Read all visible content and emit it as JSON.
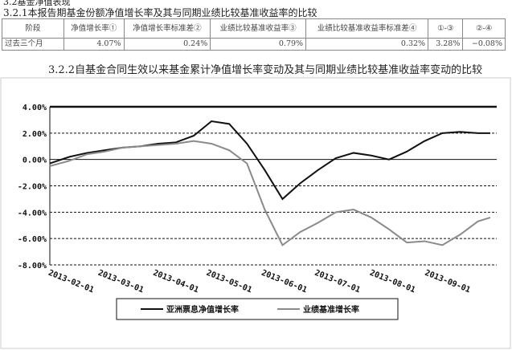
{
  "heading": "3.2基金净值表现",
  "subheading": "3.2.1本报告期基金份额净值增长率及其与同期业绩比较基准收益率的比较",
  "table": {
    "header": [
      "阶段",
      "净值增长率①",
      "净值增长率标准差②",
      "业绩比较基准收益率③",
      "业绩比较基准收益率标准差④",
      "①-③",
      "②-④"
    ],
    "rows": [
      [
        "过去三个月",
        "4.07%",
        "0.24%",
        "0.79%",
        "0.32%",
        "3.28%",
        "−0.08%"
      ]
    ]
  },
  "section_title": "3.2.2自基金合同生效以来基金累计净值增长率变动及其与同期业绩比较基准收益率变动的比较",
  "chart_data": {
    "type": "line",
    "x": [
      "2013-01-25",
      "2013-02-05",
      "2013-02-15",
      "2013-02-25",
      "2013-03-07",
      "2013-03-17",
      "2013-03-27",
      "2013-04-06",
      "2013-04-16",
      "2013-04-26",
      "2013-05-06",
      "2013-05-16",
      "2013-05-26",
      "2013-06-05",
      "2013-06-15",
      "2013-06-25",
      "2013-07-05",
      "2013-07-15",
      "2013-07-25",
      "2013-08-04",
      "2013-08-14",
      "2013-08-24",
      "2013-09-03",
      "2013-09-13",
      "2013-09-23",
      "2013-09-30"
    ],
    "series": [
      {
        "name": "亚洲票息净值增长率",
        "color": "#111111",
        "values": [
          -0.3,
          0.2,
          0.5,
          0.7,
          0.9,
          1.0,
          1.2,
          1.3,
          1.8,
          2.9,
          2.7,
          1.2,
          -0.8,
          -3.0,
          -1.8,
          -0.8,
          0.1,
          0.5,
          0.3,
          0.0,
          0.6,
          1.4,
          2.0,
          2.1,
          2.0,
          2.0
        ]
      },
      {
        "name": "业绩基准增长率",
        "color": "#8a8a8a",
        "values": [
          -0.5,
          -0.1,
          0.4,
          0.6,
          0.9,
          1.0,
          1.1,
          1.2,
          1.4,
          1.2,
          0.7,
          -0.3,
          -3.8,
          -6.5,
          -5.5,
          -4.8,
          -4.0,
          -3.8,
          -4.4,
          -5.3,
          -6.3,
          -6.2,
          -6.5,
          -5.7,
          -4.7,
          -4.4
        ]
      }
    ],
    "xlim": [
      "2013-01-25",
      "2013-09-30"
    ],
    "xticks": [
      "2013-02-01",
      "2013-03-01",
      "2013-04-01",
      "2013-05-01",
      "2013-06-01",
      "2013-07-01",
      "2013-08-01",
      "2013-09-01"
    ],
    "ylim": [
      -8,
      4
    ],
    "yticks": [
      {
        "value": 4,
        "label": "4.00%"
      },
      {
        "value": 2,
        "label": "2.00%"
      },
      {
        "value": 0,
        "label": "0.00%"
      },
      {
        "value": -2,
        "label": "-2.00%"
      },
      {
        "value": -4,
        "label": "-4.00%"
      },
      {
        "value": -6,
        "label": "-6.00%"
      },
      {
        "value": -8,
        "label": "-8.00%"
      }
    ],
    "grid": true
  }
}
